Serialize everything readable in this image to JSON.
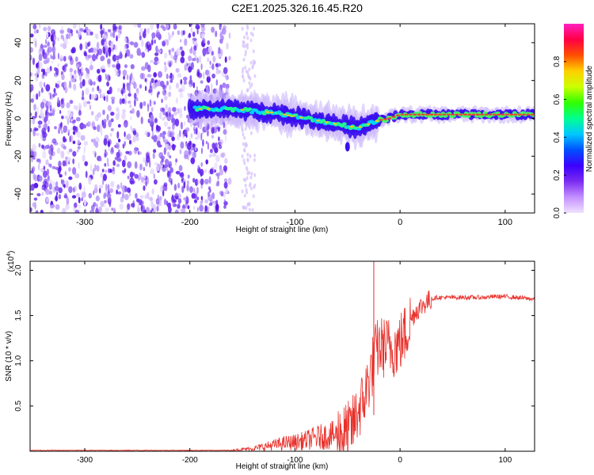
{
  "title": "C2E1.2025.326.16.45.R20",
  "chart_data": [
    {
      "type": "heatmap",
      "ylabel": "Frequency (Hz)",
      "xlabel": "Height of straight line (km)",
      "xlim": [
        -352,
        128
      ],
      "ylim": [
        -50,
        50
      ],
      "xticks": [
        -300,
        -200,
        -100,
        0,
        100
      ],
      "xtick_labels": [
        "-300",
        "-200",
        "-100",
        "0",
        "100"
      ],
      "yticks": [
        -40,
        -20,
        0,
        20,
        40
      ],
      "ytick_labels": [
        "-40",
        "-20",
        "0",
        "20",
        "40"
      ],
      "colorbar": {
        "label": "Normalized spectral amplitude",
        "range": [
          0,
          1
        ],
        "ticks": [
          0.0,
          0.2,
          0.4,
          0.6,
          0.8
        ],
        "tick_labels": [
          "0.0",
          "0.2",
          "0.4",
          "0.6",
          "0.8"
        ],
        "colors": [
          "#f0e2ff",
          "#c490ff",
          "#7b2cf0",
          "#3b00ff",
          "#0050ff",
          "#00c8ff",
          "#00ff90",
          "#30ff00",
          "#ccff00",
          "#ffd000",
          "#ff5000",
          "#ff0044",
          "#ff20c0"
        ]
      },
      "trace": {
        "x": [
          -200,
          -180,
          -160,
          -140,
          -120,
          -100,
          -80,
          -60,
          -40,
          -30,
          -20,
          -10,
          0,
          20,
          40,
          60,
          80,
          100,
          128
        ],
        "y": [
          5,
          5,
          5,
          4,
          3,
          1,
          -1,
          -3,
          -5,
          -3,
          -1,
          0,
          2,
          2,
          2,
          2,
          2,
          2,
          2
        ]
      }
    },
    {
      "type": "line",
      "ylabel": "SNR (10 * v/v)",
      "yscale_label": "(x10",
      "yscale_exp": "4",
      "xlabel": "Height of straight line (km)",
      "xlim": [
        -352,
        128
      ],
      "ylim": [
        0,
        2.1
      ],
      "xticks": [
        -300,
        -200,
        -100,
        0,
        100
      ],
      "xtick_labels": [
        "-300",
        "-200",
        "-100",
        "0",
        "100"
      ],
      "yticks": [
        0.5,
        1.0,
        1.5,
        2.0
      ],
      "ytick_labels": [
        "0.5",
        "1.0",
        "1.5",
        "2.0"
      ],
      "color": "#e8302a",
      "series": [
        {
          "name": "SNR",
          "x": [
            -352,
            -300,
            -250,
            -200,
            -160,
            -150,
            -140,
            -130,
            -120,
            -110,
            -100,
            -90,
            -80,
            -70,
            -60,
            -50,
            -45,
            -40,
            -35,
            -30,
            -27,
            -24,
            -22,
            -20,
            -15,
            -10,
            -5,
            0,
            5,
            10,
            15,
            20,
            25,
            30,
            35,
            40,
            50,
            60,
            70,
            80,
            90,
            100,
            110,
            120,
            128
          ],
          "y": [
            0.01,
            0.01,
            0.01,
            0.01,
            0.01,
            0.02,
            0.03,
            0.05,
            0.07,
            0.09,
            0.1,
            0.12,
            0.15,
            0.17,
            0.18,
            0.2,
            0.28,
            0.45,
            0.55,
            0.78,
            0.9,
            1.05,
            1.12,
            1.15,
            1.15,
            1.15,
            1.15,
            1.2,
            1.3,
            1.45,
            1.55,
            1.6,
            1.65,
            1.68,
            1.7,
            1.7,
            1.7,
            1.7,
            1.7,
            1.7,
            1.71,
            1.71,
            1.7,
            1.69,
            1.68
          ]
        }
      ]
    }
  ]
}
